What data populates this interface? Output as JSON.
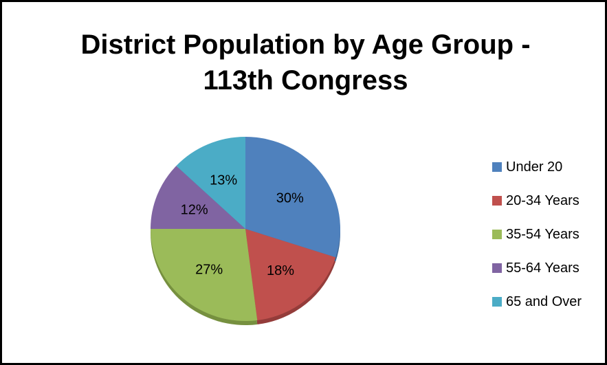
{
  "chart_data": {
    "type": "pie",
    "title": "District Population by Age Group - 113th Congress",
    "categories": [
      "Under 20",
      "20-34 Years",
      "35-54 Years",
      "55-64 Years",
      "65 and Over"
    ],
    "values": [
      30,
      18,
      27,
      12,
      13
    ],
    "value_labels": [
      "30%",
      "18%",
      "27%",
      "12%",
      "13%"
    ],
    "colors": [
      "#4f81bd",
      "#c0504d",
      "#9bbb59",
      "#8064a2",
      "#4bacc6"
    ],
    "shade_colors": [
      "#3c6493",
      "#943c3a",
      "#76903f",
      "#604b7c",
      "#358597"
    ],
    "start_angle_deg": 0,
    "direction": "clockwise",
    "legend_position": "right",
    "style": "3d-tilted"
  }
}
